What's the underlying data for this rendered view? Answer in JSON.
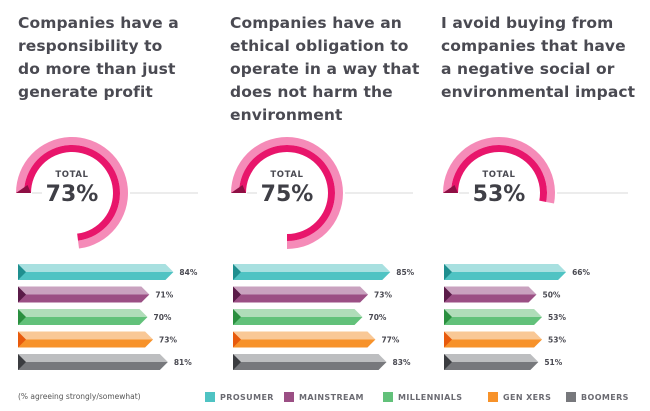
{
  "legend": {
    "note": "(% agreeing strongly/somewhat)",
    "items": [
      {
        "label": "PROSUMER",
        "color": "#4fc3c3"
      },
      {
        "label": "MAINSTREAM",
        "color": "#9b4f84"
      },
      {
        "label": "MILLENNIALS",
        "color": "#62c17a"
      },
      {
        "label": "GEN XERS",
        "color": "#f7922a"
      },
      {
        "label": "BOOMERS",
        "color": "#77787c"
      }
    ]
  },
  "colors": {
    "gauge_outer": "#f58bb8",
    "gauge_inner": "#e8156b",
    "gauge_cap": "#8e0f44",
    "baseline": "#d8d8d8",
    "series": [
      {
        "light": "#a8e0e0",
        "dark": "#4fc3c3",
        "tip": "#1f8f8f"
      },
      {
        "light": "#c9a2bf",
        "dark": "#9b4f84",
        "tip": "#5a1b48"
      },
      {
        "light": "#b0ddb9",
        "dark": "#62c17a",
        "tip": "#2a8f3f"
      },
      {
        "light": "#f9c896",
        "dark": "#f7922a",
        "tip": "#e85a0c"
      },
      {
        "light": "#bdbec0",
        "dark": "#77787c",
        "tip": "#3b3c40"
      }
    ]
  },
  "chart_data": [
    {
      "type": "bar",
      "title": "Companies have a\nresponsibility to\ndo more than just\ngenerate profit",
      "total_label": "TOTAL",
      "total": 73,
      "total_text": "73%",
      "categories": [
        "Prosumer",
        "Mainstream",
        "Millennials",
        "Gen Xers",
        "Boomers"
      ],
      "values": [
        84,
        71,
        70,
        73,
        81
      ],
      "value_labels": [
        "84%",
        "71%",
        "70%",
        "73%",
        "81%"
      ],
      "unit": "%"
    },
    {
      "type": "bar",
      "title": "Companies have an\nethical obligation to\noperate in a way that\ndoes not harm the\nenvironment",
      "total_label": "TOTAL",
      "total": 75,
      "total_text": "75%",
      "categories": [
        "Prosumer",
        "Mainstream",
        "Millennials",
        "Gen Xers",
        "Boomers"
      ],
      "values": [
        85,
        73,
        70,
        77,
        83
      ],
      "value_labels": [
        "85%",
        "73%",
        "70%",
        "77%",
        "83%"
      ],
      "unit": "%"
    },
    {
      "type": "bar",
      "title": "I avoid buying from\ncompanies that have\na negative social or\nenvironmental impact",
      "total_label": "TOTAL",
      "total": 53,
      "total_text": "53%",
      "categories": [
        "Prosumer",
        "Mainstream",
        "Millennials",
        "Gen Xers",
        "Boomers"
      ],
      "values": [
        66,
        50,
        53,
        53,
        51
      ],
      "value_labels": [
        "66%",
        "50%",
        "53%",
        "53%",
        "51%"
      ],
      "unit": "%"
    }
  ]
}
